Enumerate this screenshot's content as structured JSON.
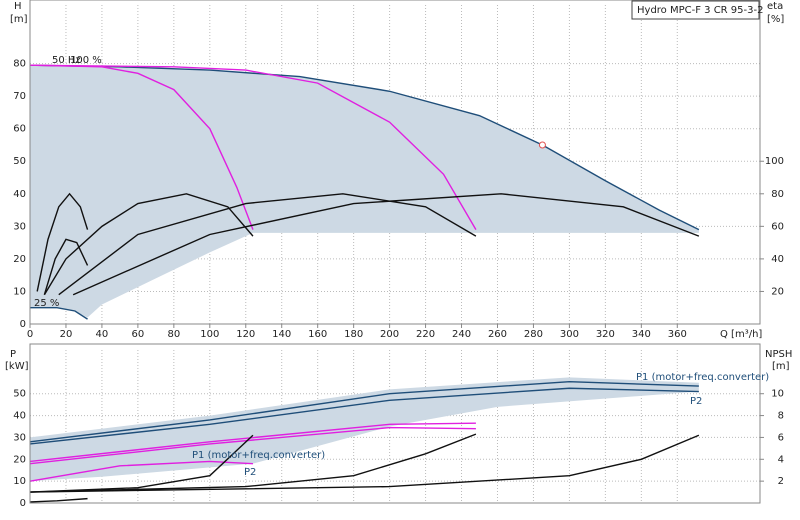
{
  "chart_data": [
    {
      "type": "line",
      "title": "Hydro MPC-F 3 CR 95-3-2",
      "ylabel": "H",
      "yunit": "[m]",
      "y2label": "eta",
      "y2unit": "[%]",
      "xlabel": "Q [m³/h]",
      "annotations": [
        "50 Hz",
        "100 %",
        "25 %"
      ],
      "xlim": [
        0,
        406
      ],
      "xticks": [
        0,
        20,
        40,
        60,
        80,
        100,
        120,
        140,
        160,
        180,
        200,
        220,
        240,
        260,
        280,
        300,
        320,
        340,
        360
      ],
      "ylim": [
        0,
        98
      ],
      "yticks": [
        0,
        10,
        20,
        30,
        40,
        50,
        60,
        70,
        80
      ],
      "y2lim": [
        0,
        196
      ],
      "y2ticks": [
        20,
        40,
        60,
        80,
        100
      ],
      "grid": true,
      "region": {
        "color": "#cdd9e4",
        "x": [
          0,
          50,
          100,
          150,
          200,
          250,
          285,
          320,
          350,
          372,
          372,
          124,
          100,
          70,
          40,
          32,
          25,
          15,
          0
        ],
        "values": [
          79.5,
          79,
          78,
          76,
          71.5,
          64,
          55,
          44,
          35,
          29,
          28,
          28,
          22,
          14,
          6,
          2,
          4,
          5,
          5
        ]
      },
      "series": [
        {
          "color": "#1f4e79",
          "x": [
            0,
            50,
            100,
            150,
            200,
            250,
            285,
            320,
            350,
            372
          ],
          "values": [
            79.5,
            79,
            78,
            76,
            71.5,
            64,
            55,
            44,
            35,
            29
          ]
        },
        {
          "color": "#e020e0",
          "x": [
            0,
            40,
            60,
            80,
            100,
            115,
            124
          ],
          "values": [
            79.5,
            79,
            77,
            72,
            60,
            42,
            29
          ]
        },
        {
          "color": "#e020e0",
          "x": [
            0,
            80,
            120,
            160,
            200,
            230,
            248
          ],
          "values": [
            79.5,
            79,
            78,
            74,
            62,
            46,
            29
          ]
        },
        {
          "color": "#1f4e79",
          "x": [
            0,
            15,
            25,
            32
          ],
          "values": [
            5,
            5,
            4,
            1.5
          ]
        },
        {
          "color": "#111111",
          "axis": "y2",
          "x": [
            8,
            20,
            40,
            60,
            87,
            110,
            124
          ],
          "values": [
            18,
            40,
            60,
            74,
            80,
            72,
            54
          ]
        },
        {
          "color": "#111111",
          "axis": "y2",
          "x": [
            16,
            60,
            120,
            174,
            220,
            248
          ],
          "values": [
            18,
            55,
            74,
            80,
            72,
            54
          ]
        },
        {
          "color": "#111111",
          "axis": "y2",
          "x": [
            24,
            100,
            180,
            262,
            330,
            372
          ],
          "values": [
            18,
            55,
            74,
            80,
            72,
            54
          ]
        },
        {
          "color": "#111111",
          "axis": "y2",
          "x": [
            4,
            10,
            16,
            22,
            28,
            32
          ],
          "values": [
            20,
            52,
            72,
            80,
            72,
            58
          ]
        },
        {
          "color": "#111111",
          "axis": "y2",
          "x": [
            8,
            14,
            20,
            26,
            32
          ],
          "values": [
            18,
            40,
            52,
            50,
            36
          ]
        }
      ],
      "points": {
        "color": "#e05050",
        "x": [
          285
        ],
        "values": [
          55
        ]
      }
    },
    {
      "type": "line",
      "ylabel": "P",
      "yunit": "[kW]",
      "y2label": "NPSH",
      "y2unit": "[m]",
      "annotations": [
        "P1 (motor+freq.converter)",
        "P2",
        "P1 (motor+freq.converter)",
        "P2"
      ],
      "xlim": [
        0,
        406
      ],
      "ylim": [
        0,
        70
      ],
      "yticks": [
        0,
        10,
        20,
        30,
        40,
        50
      ],
      "y2lim": [
        0,
        14
      ],
      "y2ticks": [
        2,
        4,
        6,
        8,
        10
      ],
      "grid": true,
      "region": {
        "color": "#cdd9e4",
        "x": [
          0,
          100,
          200,
          300,
          372,
          372,
          260,
          200,
          124,
          40,
          0
        ],
        "values": [
          30,
          40,
          52,
          57.5,
          55,
          51,
          44,
          35,
          18,
          12,
          10
        ]
      },
      "series": [
        {
          "color": "#1f4e79",
          "x": [
            0,
            100,
            200,
            300,
            372
          ],
          "values": [
            28,
            38,
            50,
            55.5,
            53.5
          ]
        },
        {
          "color": "#1f4e79",
          "x": [
            0,
            100,
            200,
            300,
            372
          ],
          "values": [
            27,
            36,
            47,
            52.5,
            51
          ]
        },
        {
          "color": "#e020e0",
          "x": [
            0,
            100,
            200,
            248
          ],
          "values": [
            19,
            28,
            36,
            36.5
          ]
        },
        {
          "color": "#e020e0",
          "x": [
            0,
            100,
            200,
            248
          ],
          "values": [
            18,
            27,
            34.5,
            34
          ]
        },
        {
          "color": "#e020e0",
          "x": [
            0,
            50,
            100,
            124
          ],
          "values": [
            10,
            17,
            19,
            18
          ]
        },
        {
          "color": "#111111",
          "x": [
            0,
            15,
            32
          ],
          "values": [
            0.5,
            1,
            2
          ]
        },
        {
          "color": "#111111",
          "axis": "y2",
          "x": [
            0,
            200,
            300,
            340,
            372
          ],
          "values": [
            1,
            1.5,
            2.5,
            4,
            6.2
          ]
        },
        {
          "color": "#111111",
          "axis": "y2",
          "x": [
            0,
            120,
            180,
            220,
            248
          ],
          "values": [
            1,
            1.5,
            2.5,
            4.5,
            6.3
          ]
        },
        {
          "color": "#111111",
          "axis": "y2",
          "x": [
            0,
            60,
            100,
            124
          ],
          "values": [
            1,
            1.4,
            2.5,
            6.2
          ]
        }
      ]
    }
  ]
}
